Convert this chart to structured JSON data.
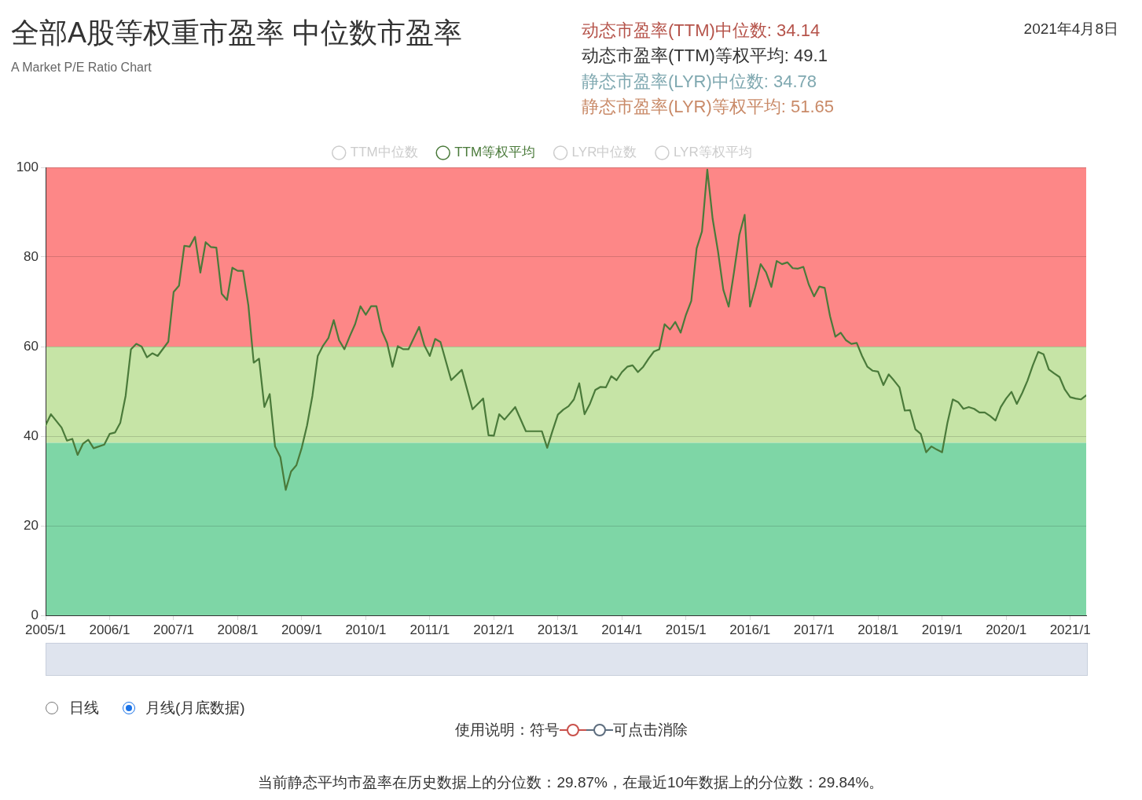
{
  "chart_data": {
    "type": "line",
    "title": "全部A股等权重市盈率 中位数市盈率",
    "subtitle": "A Market P/E Ratio Chart",
    "annotations": [
      "动态市盈率(TTM)中位数: 34.14",
      "动态市盈率(TTM)等权平均: 49.1",
      "静态市盈率(LYR)中位数: 34.78",
      "静态市盈率(LYR)等权平均: 51.65",
      "2021年4月8日",
      "日线",
      "月线(月底数据)",
      "使用说明：符号",
      "可点击消除",
      "当前静态平均市盈率在历史数据上的分位数：29.87%，在最近10年数据上的分位数：29.84%。"
    ],
    "x": [
      "2005-01",
      "2005-02",
      "2005-04",
      "2005-05",
      "2005-06",
      "2005-07",
      "2005-08",
      "2005-09",
      "2005-10",
      "2005-12",
      "2006-01",
      "2006-02",
      "2006-03",
      "2006-04",
      "2006-05",
      "2006-06",
      "2006-07",
      "2006-08",
      "2006-09",
      "2006-10",
      "2006-12",
      "2007-01",
      "2007-02",
      "2007-03",
      "2007-04",
      "2007-05",
      "2007-06",
      "2007-07",
      "2007-08",
      "2007-09",
      "2007-10",
      "2007-11",
      "2007-12",
      "2008-01",
      "2008-02",
      "2008-03",
      "2008-04",
      "2008-05",
      "2008-06",
      "2008-07",
      "2008-08",
      "2008-09",
      "2008-10",
      "2008-11",
      "2008-12",
      "2009-01",
      "2009-02",
      "2009-03",
      "2009-04",
      "2009-05",
      "2009-06",
      "2009-07",
      "2009-08",
      "2009-09",
      "2009-10",
      "2009-11",
      "2009-12",
      "2010-01",
      "2010-02",
      "2010-03",
      "2010-04",
      "2010-05",
      "2010-06",
      "2010-07",
      "2010-08",
      "2010-09",
      "2010-11",
      "2010-12",
      "2011-01",
      "2011-02",
      "2011-03",
      "2011-05",
      "2011-07",
      "2011-09",
      "2011-11",
      "2011-12",
      "2012-01",
      "2012-02",
      "2012-03",
      "2012-05",
      "2012-07",
      "2012-09",
      "2012-10",
      "2012-11",
      "2012-12",
      "2013-01",
      "2013-02",
      "2013-03",
      "2013-04",
      "2013-05",
      "2013-06",
      "2013-07",
      "2013-08",
      "2013-09",
      "2013-10",
      "2013-11",
      "2013-12",
      "2014-01",
      "2014-02",
      "2014-03",
      "2014-04",
      "2014-05",
      "2014-06",
      "2014-07",
      "2014-08",
      "2014-09",
      "2014-10",
      "2014-11",
      "2014-12",
      "2015-01",
      "2015-02",
      "2015-03",
      "2015-04",
      "2015-05",
      "2015-06",
      "2015-07",
      "2015-08",
      "2015-09",
      "2015-10",
      "2015-11",
      "2015-12",
      "2016-01",
      "2016-02",
      "2016-03",
      "2016-04",
      "2016-05",
      "2016-06",
      "2016-07",
      "2016-08",
      "2016-09",
      "2016-10",
      "2016-11",
      "2016-12",
      "2017-01",
      "2017-02",
      "2017-03",
      "2017-04",
      "2017-05",
      "2017-06",
      "2017-07",
      "2017-08",
      "2017-09",
      "2017-10",
      "2017-11",
      "2017-12",
      "2018-01",
      "2018-02",
      "2018-03",
      "2018-04",
      "2018-05",
      "2018-06",
      "2018-07",
      "2018-08",
      "2018-09",
      "2018-10",
      "2018-11",
      "2018-12",
      "2019-01",
      "2019-02",
      "2019-03",
      "2019-04",
      "2019-05",
      "2019-06",
      "2019-07",
      "2019-08",
      "2019-09",
      "2019-10",
      "2019-11",
      "2019-12",
      "2020-01",
      "2020-02",
      "2020-03",
      "2020-04",
      "2020-05",
      "2020-06",
      "2020-07",
      "2020-08",
      "2020-09",
      "2020-10",
      "2020-11",
      "2020-12",
      "2021-01",
      "2021-02",
      "2021-03",
      "2021-04"
    ],
    "series": [
      {
        "name": "TTM中位数",
        "color": "#cccccc",
        "values": [
          null,
          null,
          null,
          null,
          null,
          null,
          null,
          null,
          null,
          null,
          null,
          null,
          null,
          null,
          null,
          null,
          null,
          null,
          null,
          null,
          null,
          null,
          null,
          null,
          null,
          null,
          null,
          null,
          null,
          null,
          null,
          null,
          null,
          null,
          null,
          null,
          null,
          null,
          null,
          null,
          null,
          null,
          null,
          null,
          null,
          null,
          null,
          null,
          null,
          null,
          null,
          null,
          null,
          null,
          null,
          null,
          null,
          null,
          null,
          null,
          null,
          null,
          null,
          null,
          null,
          null,
          null,
          null,
          null,
          null,
          null,
          null,
          null,
          null,
          null,
          null,
          null,
          null,
          null,
          null,
          null,
          null,
          null,
          null,
          null,
          null,
          null,
          null,
          null,
          null,
          null,
          null,
          null,
          null,
          null,
          null,
          null,
          null,
          null,
          null,
          null,
          null,
          null,
          null,
          null,
          null,
          null,
          null,
          null,
          null,
          null,
          null,
          null,
          null,
          null,
          null,
          null,
          null,
          null,
          null,
          null,
          null,
          null,
          null,
          null,
          null,
          null,
          null,
          null,
          null,
          null,
          null,
          null,
          null,
          null,
          null,
          null,
          null,
          null,
          null,
          null,
          null,
          null,
          null,
          null,
          null,
          null,
          null,
          null,
          null,
          null,
          null,
          null,
          null,
          null,
          null,
          null,
          null,
          null,
          null,
          null,
          null,
          null,
          null,
          null,
          null,
          null,
          null,
          null,
          null,
          null,
          null,
          null,
          null,
          null,
          null,
          null,
          null,
          null,
          null,
          null,
          null,
          null,
          null,
          null
        ]
      },
      {
        "name": "TTM等权平均",
        "color": "#4a7a3a",
        "values": [
          42.4,
          44.9,
          41.9,
          39.0,
          39.4,
          35.8,
          38.3,
          39.2,
          37.3,
          38.1,
          40.5,
          40.8,
          43.0,
          49.0,
          59.4,
          60.6,
          60.0,
          57.6,
          58.5,
          57.9,
          61.1,
          72.2,
          73.6,
          82.5,
          82.3,
          84.5,
          76.5,
          83.3,
          82.2,
          82.1,
          71.8,
          70.4,
          77.6,
          76.9,
          76.9,
          69.2,
          56.4,
          57.3,
          46.5,
          49.4,
          37.7,
          35.3,
          28.0,
          32.1,
          33.5,
          37.4,
          42.4,
          49.0,
          57.9,
          60.2,
          61.9,
          65.9,
          61.4,
          59.4,
          62.3,
          65.0,
          69.0,
          67.1,
          69.0,
          69.0,
          63.5,
          60.8,
          55.5,
          60.1,
          59.4,
          59.4,
          64.4,
          60.2,
          57.9,
          61.7,
          61.0,
          52.5,
          54.8,
          46.0,
          48.4,
          40.2,
          40.1,
          44.9,
          43.7,
          46.5,
          41.1,
          41.1,
          41.1,
          37.4,
          41.2,
          44.8,
          45.9,
          46.7,
          48.2,
          51.8,
          44.9,
          47.2,
          50.3,
          51.0,
          50.9,
          53.4,
          52.5,
          54.3,
          55.5,
          55.8,
          54.3,
          55.5,
          57.3,
          58.9,
          59.4,
          65.0,
          63.8,
          65.5,
          63.1,
          67.1,
          70.2,
          81.9,
          85.7,
          99.5,
          88.5,
          81.3,
          72.7,
          68.9,
          76.6,
          84.9,
          89.4,
          68.9,
          73.3,
          78.4,
          76.6,
          73.3,
          79.1,
          78.4,
          78.8,
          77.5,
          77.4,
          77.8,
          73.9,
          71.2,
          73.4,
          73.1,
          66.8,
          62.2,
          63.1,
          61.4,
          60.6,
          60.8,
          57.9,
          55.5,
          54.6,
          54.4,
          51.4,
          53.8,
          52.4,
          50.9,
          45.7,
          45.8,
          41.5,
          40.5,
          36.4,
          37.7,
          37.0,
          36.4,
          43.0,
          48.2,
          47.6,
          46.1,
          46.5,
          46.1,
          45.3,
          45.3,
          44.5,
          43.5,
          46.5,
          48.4,
          49.9,
          47.2,
          49.6,
          52.4,
          55.8,
          58.8,
          58.3,
          54.9,
          54.0,
          53.2,
          50.4,
          48.7,
          48.4,
          48.2,
          49.1
        ]
      },
      {
        "name": "LYR中位数",
        "color": "#cccccc",
        "values": [
          null,
          null,
          null,
          null,
          null,
          null,
          null,
          null,
          null,
          null,
          null,
          null,
          null,
          null,
          null,
          null,
          null,
          null,
          null,
          null,
          null,
          null,
          null,
          null,
          null,
          null,
          null,
          null,
          null,
          null,
          null,
          null,
          null,
          null,
          null,
          null,
          null,
          null,
          null,
          null,
          null,
          null,
          null,
          null,
          null,
          null,
          null,
          null,
          null,
          null,
          null,
          null,
          null,
          null,
          null,
          null,
          null,
          null,
          null,
          null,
          null,
          null,
          null,
          null,
          null,
          null,
          null,
          null,
          null,
          null,
          null,
          null,
          null,
          null,
          null,
          null,
          null,
          null,
          null,
          null,
          null,
          null,
          null,
          null,
          null,
          null,
          null,
          null,
          null,
          null,
          null,
          null,
          null,
          null,
          null,
          null,
          null,
          null,
          null,
          null,
          null,
          null,
          null,
          null,
          null,
          null,
          null,
          null,
          null,
          null,
          null,
          null,
          null,
          null,
          null,
          null,
          null,
          null,
          null,
          null,
          null,
          null,
          null,
          null,
          null,
          null,
          null,
          null,
          null,
          null,
          null,
          null,
          null,
          null,
          null,
          null,
          null,
          null,
          null,
          null,
          null,
          null,
          null,
          null,
          null,
          null,
          null,
          null,
          null,
          null,
          null,
          null,
          null,
          null,
          null,
          null,
          null,
          null,
          null,
          null,
          null,
          null,
          null,
          null,
          null,
          null,
          null,
          null,
          null,
          null,
          null,
          null,
          null,
          null,
          null,
          null,
          null,
          null,
          null,
          null,
          null,
          null,
          null,
          null,
          null
        ]
      },
      {
        "name": "LYR等权平均",
        "color": "#cccccc",
        "values": [
          null,
          null,
          null,
          null,
          null,
          null,
          null,
          null,
          null,
          null,
          null,
          null,
          null,
          null,
          null,
          null,
          null,
          null,
          null,
          null,
          null,
          null,
          null,
          null,
          null,
          null,
          null,
          null,
          null,
          null,
          null,
          null,
          null,
          null,
          null,
          null,
          null,
          null,
          null,
          null,
          null,
          null,
          null,
          null,
          null,
          null,
          null,
          null,
          null,
          null,
          null,
          null,
          null,
          null,
          null,
          null,
          null,
          null,
          null,
          null,
          null,
          null,
          null,
          null,
          null,
          null,
          null,
          null,
          null,
          null,
          null,
          null,
          null,
          null,
          null,
          null,
          null,
          null,
          null,
          null,
          null,
          null,
          null,
          null,
          null,
          null,
          null,
          null,
          null,
          null,
          null,
          null,
          null,
          null,
          null,
          null,
          null,
          null,
          null,
          null,
          null,
          null,
          null,
          null,
          null,
          null,
          null,
          null,
          null,
          null,
          null,
          null,
          null,
          null,
          null,
          null,
          null,
          null,
          null,
          null,
          null,
          null,
          null,
          null,
          null,
          null,
          null,
          null,
          null,
          null,
          null,
          null,
          null,
          null,
          null,
          null,
          null,
          null,
          null,
          null,
          null,
          null,
          null,
          null,
          null,
          null,
          null,
          null,
          null,
          null,
          null,
          null,
          null,
          null,
          null,
          null,
          null,
          null,
          null,
          null,
          null,
          null,
          null,
          null,
          null,
          null,
          null,
          null,
          null,
          null,
          null,
          null,
          null,
          null,
          null,
          null,
          null,
          null,
          null,
          null,
          null,
          null,
          null,
          null,
          null
        ]
      }
    ],
    "xlim": [
      "2005-01",
      "2021-04"
    ],
    "xticks": [
      {
        "value": "2005-01",
        "label": "2005/1"
      },
      {
        "value": "2006-01",
        "label": "2006/1"
      },
      {
        "value": "2007-01",
        "label": "2007/1"
      },
      {
        "value": "2008-01",
        "label": "2008/1"
      },
      {
        "value": "2009-01",
        "label": "2009/1"
      },
      {
        "value": "2010-01",
        "label": "2010/1"
      },
      {
        "value": "2011-01",
        "label": "2011/1"
      },
      {
        "value": "2012-01",
        "label": "2012/1"
      },
      {
        "value": "2013-01",
        "label": "2013/1"
      },
      {
        "value": "2014-01",
        "label": "2014/1"
      },
      {
        "value": "2015-01",
        "label": "2015/1"
      },
      {
        "value": "2016-01",
        "label": "2016/1"
      },
      {
        "value": "2017-01",
        "label": "2017/1"
      },
      {
        "value": "2018-01",
        "label": "2018/1"
      },
      {
        "value": "2019-01",
        "label": "2019/1"
      },
      {
        "value": "2020-01",
        "label": "2020/1"
      },
      {
        "value": "2021-01",
        "label": "2021/1"
      }
    ],
    "ylim": [
      0,
      100
    ],
    "yticks": [
      0,
      20,
      40,
      60,
      80,
      100
    ],
    "bands": [
      {
        "axis": "y",
        "from": 60,
        "to": 100,
        "color": "#fd8787"
      },
      {
        "axis": "y",
        "from": 38.5,
        "to": 60,
        "color": "#c6e4a6"
      },
      {
        "axis": "y",
        "from": 0,
        "to": 38.5,
        "color": "#7ed6a6"
      }
    ],
    "grid": "y",
    "legend": "top",
    "line_style": "solid"
  }
}
